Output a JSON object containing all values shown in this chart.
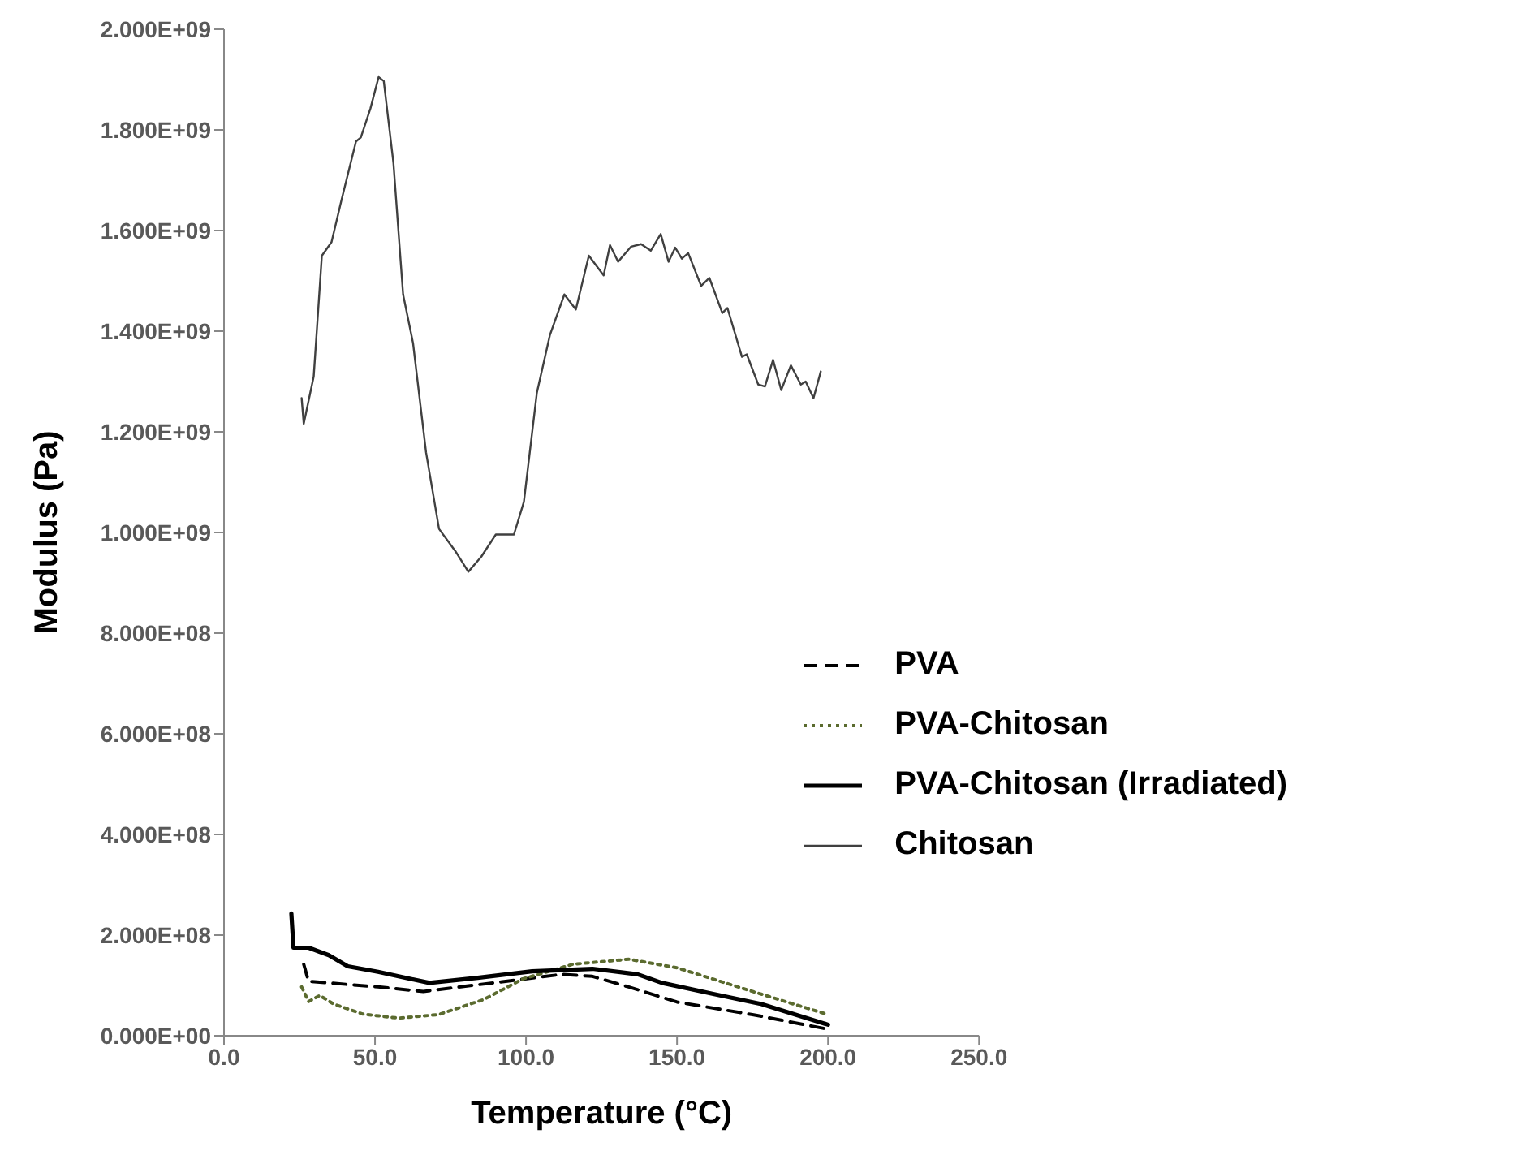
{
  "chart_data": {
    "type": "line",
    "xlabel": "Temperature (°C)",
    "ylabel": "Modulus (Pa)",
    "xlim": [
      0,
      250
    ],
    "xticks": [
      {
        "value": 0,
        "label": "0.0"
      },
      {
        "value": 50,
        "label": "50.0"
      },
      {
        "value": 100,
        "label": "100.0"
      },
      {
        "value": 150,
        "label": "150.0"
      },
      {
        "value": 200,
        "label": "200.0"
      },
      {
        "value": 250,
        "label": "250.0"
      }
    ],
    "ylim": [
      0,
      2000000000
    ],
    "yticks": [
      {
        "value": 0,
        "label": "0.000E+00"
      },
      {
        "value": 200000000,
        "label": "2.000E+08"
      },
      {
        "value": 400000000,
        "label": "4.000E+08"
      },
      {
        "value": 600000000,
        "label": "6.000E+08"
      },
      {
        "value": 800000000,
        "label": "8.000E+08"
      },
      {
        "value": 1000000000,
        "label": "1.000E+09"
      },
      {
        "value": 1200000000,
        "label": "1.200E+09"
      },
      {
        "value": 1400000000,
        "label": "1.400E+09"
      },
      {
        "value": 1600000000,
        "label": "1.600E+09"
      },
      {
        "value": 1800000000,
        "label": "1.800E+09"
      },
      {
        "value": 2000000000,
        "label": "2.000E+09"
      }
    ],
    "legend": "right",
    "marker": "none",
    "series": [
      {
        "name": "PVA",
        "color": "#000000",
        "line_style": "dashed",
        "x": [
          26.4,
          28,
          34.7,
          51,
          66,
          89,
          112,
          122,
          134,
          150,
          175,
          200
        ],
        "values": [
          142000000,
          108000000,
          105000000,
          97000000,
          88000000,
          105000000,
          122000000,
          118000000,
          97000000,
          67000000,
          42000000,
          13000000
        ]
      },
      {
        "name": "PVA-Chitosan",
        "color": "#5b6b2f",
        "line_style": "dotted",
        "x": [
          25.7,
          28,
          31.7,
          36.3,
          46,
          57.8,
          71,
          86,
          99,
          115.5,
          134,
          150,
          175,
          200
        ],
        "values": [
          97000000,
          68000000,
          80000000,
          63000000,
          43000000,
          35000000,
          42000000,
          72000000,
          113000000,
          142000000,
          152000000,
          135000000,
          88000000,
          42000000
        ]
      },
      {
        "name": "PVA-Chitosan (Irradiated)",
        "color": "#000000",
        "line_style": "solid",
        "x": [
          22.3,
          23,
          28,
          34.7,
          41,
          51,
          68,
          84,
          102,
          122,
          137,
          145,
          162,
          178,
          200
        ],
        "values": [
          243000000,
          175000000,
          175000000,
          160000000,
          138000000,
          127000000,
          105000000,
          115000000,
          128000000,
          133000000,
          122000000,
          105000000,
          83000000,
          63000000,
          22000000
        ]
      },
      {
        "name": "Chitosan",
        "color": "#404040",
        "line_style": "solid",
        "x": [
          25.7,
          26.4,
          29.7,
          32.4,
          35.6,
          38.8,
          43.7,
          45.3,
          48.5,
          51.2,
          52.9,
          56.1,
          59.3,
          62.6,
          66.9,
          71.2,
          76.6,
          80.9,
          85.2,
          90,
          96,
          99.3,
          103.6,
          107.9,
          112.7,
          116.5,
          120.8,
          125.7,
          127.8,
          130.5,
          134.8,
          138.1,
          141.3,
          144.6,
          147.2,
          149.4,
          151.6,
          153.7,
          158,
          160.7,
          165,
          166.7,
          171.5,
          173.1,
          176.9,
          179.1,
          181.8,
          184.5,
          187.7,
          191,
          192.6,
          195.2,
          197.6
        ],
        "values": [
          1267000000,
          1216000000,
          1310000000,
          1550000000,
          1577000000,
          1658000000,
          1777000000,
          1785000000,
          1843000000,
          1905000000,
          1897000000,
          1734000000,
          1473000000,
          1376000000,
          1159000000,
          1007000000,
          963000000,
          922000000,
          952000000,
          996000000,
          996000000,
          1061000000,
          1278000000,
          1392000000,
          1473000000,
          1443000000,
          1550000000,
          1511000000,
          1571000000,
          1538000000,
          1568000000,
          1573000000,
          1560000000,
          1593000000,
          1538000000,
          1566000000,
          1544000000,
          1555000000,
          1490000000,
          1506000000,
          1436000000,
          1446000000,
          1349000000,
          1354000000,
          1294000000,
          1290000000,
          1343000000,
          1283000000,
          1332000000,
          1294000000,
          1300000000,
          1267000000,
          1320000000
        ]
      }
    ]
  }
}
